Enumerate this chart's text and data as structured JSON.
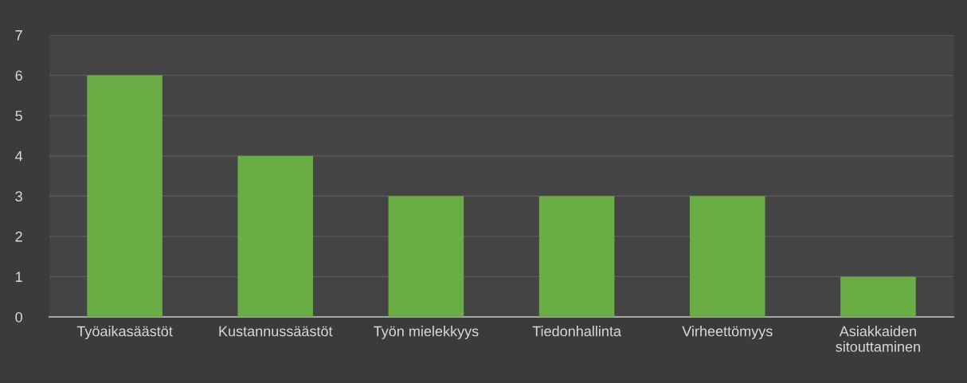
{
  "chart_data": {
    "type": "bar",
    "categories": [
      "Työaikasäästöt",
      "Kustannussäästöt",
      "Työn mielekkyys",
      "Tiedonhallinta",
      "Virheettömyys",
      "Asiakkaiden\nsitouttaminen"
    ],
    "values": [
      6,
      4,
      3,
      3,
      3,
      1
    ],
    "color": "#6aad45",
    "ylim": [
      0,
      7
    ],
    "yticks": [
      0,
      1,
      2,
      3,
      4,
      5,
      6,
      7
    ],
    "grid": "y"
  }
}
